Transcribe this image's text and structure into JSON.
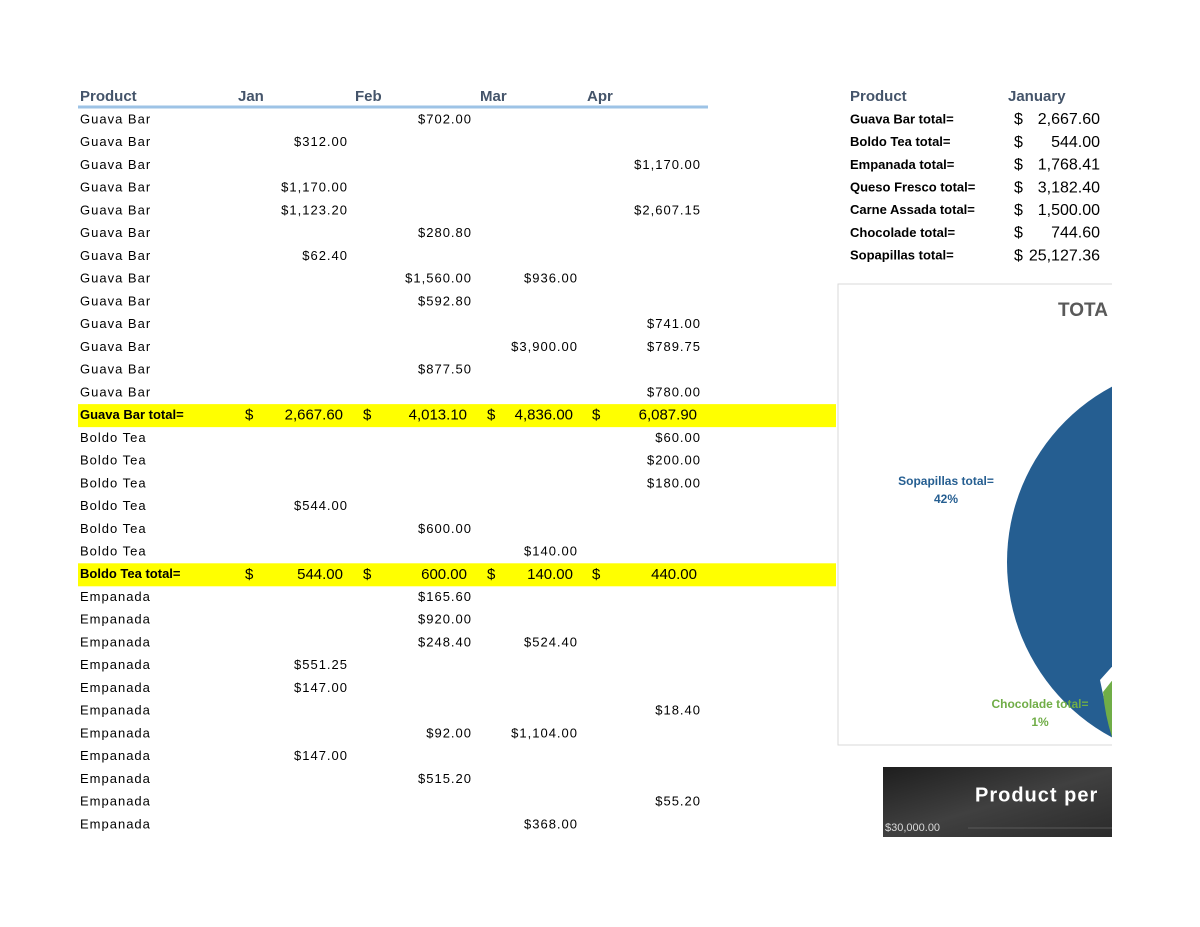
{
  "table": {
    "headers": [
      "Product",
      "Jan",
      "Feb",
      "Mar",
      "Apr"
    ],
    "rows": [
      {
        "product": "Guava Bar",
        "cells": [
          null,
          "$702.00",
          null,
          null
        ]
      },
      {
        "product": "Guava Bar",
        "cells": [
          "$312.00",
          null,
          null,
          null
        ]
      },
      {
        "product": "Guava Bar",
        "cells": [
          null,
          null,
          null,
          "$1,170.00"
        ]
      },
      {
        "product": "Guava Bar",
        "cells": [
          "$1,170.00",
          null,
          null,
          null
        ]
      },
      {
        "product": "Guava Bar",
        "cells": [
          "$1,123.20",
          null,
          null,
          "$2,607.15"
        ]
      },
      {
        "product": "Guava Bar",
        "cells": [
          null,
          "$280.80",
          null,
          null
        ]
      },
      {
        "product": "Guava Bar",
        "cells": [
          "$62.40",
          null,
          null,
          null
        ]
      },
      {
        "product": "Guava Bar",
        "cells": [
          null,
          "$1,560.00",
          "$936.00",
          null
        ]
      },
      {
        "product": "Guava Bar",
        "cells": [
          null,
          "$592.80",
          null,
          null
        ]
      },
      {
        "product": "Guava Bar",
        "cells": [
          null,
          null,
          null,
          "$741.00"
        ]
      },
      {
        "product": "Guava Bar",
        "cells": [
          null,
          null,
          "$3,900.00",
          "$789.75"
        ]
      },
      {
        "product": "Guava Bar",
        "cells": [
          null,
          "$877.50",
          null,
          null
        ]
      },
      {
        "product": "Guava Bar",
        "cells": [
          null,
          null,
          null,
          "$780.00"
        ]
      },
      {
        "product": "Guava Bar total=",
        "currency": "$",
        "totals": [
          "2,667.60",
          "4,013.10",
          "4,836.00",
          "6,087.90"
        ]
      },
      {
        "product": "Boldo Tea",
        "cells": [
          null,
          null,
          null,
          "$60.00"
        ]
      },
      {
        "product": "Boldo Tea",
        "cells": [
          null,
          null,
          null,
          "$200.00"
        ]
      },
      {
        "product": "Boldo Tea",
        "cells": [
          null,
          null,
          null,
          "$180.00"
        ]
      },
      {
        "product": "Boldo Tea",
        "cells": [
          "$544.00",
          null,
          null,
          null
        ]
      },
      {
        "product": "Boldo Tea",
        "cells": [
          null,
          "$600.00",
          null,
          null
        ]
      },
      {
        "product": "Boldo Tea",
        "cells": [
          null,
          null,
          "$140.00",
          null
        ]
      },
      {
        "product": "Boldo Tea total=",
        "currency": "$",
        "totals": [
          "544.00",
          "600.00",
          "140.00",
          "440.00"
        ]
      },
      {
        "product": "Empanada",
        "cells": [
          null,
          "$165.60",
          null,
          null
        ]
      },
      {
        "product": "Empanada",
        "cells": [
          null,
          "$920.00",
          null,
          null
        ]
      },
      {
        "product": "Empanada",
        "cells": [
          null,
          "$248.40",
          "$524.40",
          null
        ]
      },
      {
        "product": "Empanada",
        "cells": [
          "$551.25",
          null,
          null,
          null
        ]
      },
      {
        "product": "Empanada",
        "cells": [
          "$147.00",
          null,
          null,
          null
        ]
      },
      {
        "product": "Empanada",
        "cells": [
          null,
          null,
          null,
          "$18.40"
        ]
      },
      {
        "product": "Empanada",
        "cells": [
          null,
          "$92.00",
          "$1,104.00",
          null
        ]
      },
      {
        "product": "Empanada",
        "cells": [
          "$147.00",
          null,
          null,
          null
        ]
      },
      {
        "product": "Empanada",
        "cells": [
          null,
          "$515.20",
          null,
          null
        ]
      },
      {
        "product": "Empanada",
        "cells": [
          null,
          null,
          null,
          "$55.20"
        ]
      },
      {
        "product": "Empanada",
        "cells": [
          null,
          null,
          "$368.00",
          null
        ]
      }
    ]
  },
  "summary": {
    "headers": [
      "Product",
      "January"
    ],
    "rows": [
      {
        "label": "Guava Bar total=",
        "currency": "$",
        "amount": "2,667.60"
      },
      {
        "label": "Boldo Tea total=",
        "currency": "$",
        "amount": "544.00"
      },
      {
        "label": "Empanada total=",
        "currency": "$",
        "amount": "1,768.41"
      },
      {
        "label": "Queso Fresco total=",
        "currency": "$",
        "amount": "3,182.40"
      },
      {
        "label": "Carne Assada total=",
        "currency": "$",
        "amount": "1,500.00"
      },
      {
        "label": "Chocolade total=",
        "currency": "$",
        "amount": "744.60"
      },
      {
        "label": "Sopapillas total=",
        "currency": "$",
        "amount": "25,127.36"
      }
    ]
  },
  "pie_chart": {
    "title": "TOTA",
    "labels": [
      {
        "name": "Sopapillas total=",
        "percent": "42%"
      },
      {
        "name": "Chocolade total=",
        "percent": "1%"
      }
    ]
  },
  "bar_chart": {
    "title": "Product per",
    "ytick": "$30,000.00"
  }
}
